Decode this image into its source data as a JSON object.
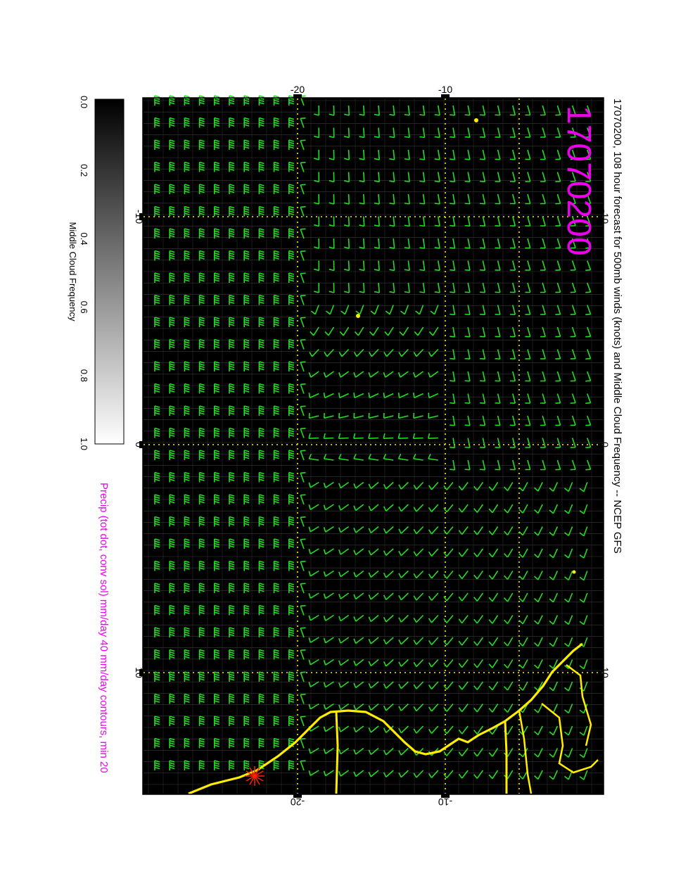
{
  "title": "17070200, 108 hour forecast for 500mb winds (knots) and Middle Cloud Frequency -- NCEP GFS",
  "date_stamp": "17070200",
  "precip_note": "Precip (tot dot, conv sol) mm/day 40 mm/day contours, min 20",
  "colorbar": {
    "label": "Middle Cloud Frequency",
    "ticks": [
      "0.0",
      "0.2",
      "0.4",
      "0.6",
      "0.8",
      "1.0"
    ]
  },
  "axes": {
    "lon_ticks_top": [
      "-10",
      "0",
      "10"
    ],
    "lon_ticks_bottom": [
      "-10",
      "0",
      "10"
    ],
    "lat_ticks_left": [
      "-20",
      "-10"
    ],
    "lat_ticks_right": [
      "-20",
      "-10"
    ]
  },
  "colors": {
    "background": "#000000",
    "wind_barbs": "#22dd22",
    "coastline": "#ffee00",
    "gridlines": "#ffee00",
    "text_accent": "#ee00ee",
    "precip_symbol": "#ff2200"
  },
  "map_data": {
    "projection": "cylindrical, displayed rotated 90 degrees",
    "lon_range": [
      -15,
      15
    ],
    "lat_range": [
      -26,
      -5
    ],
    "wind_field": "500mb wind barbs on regular grid; strong westerlies south of -20, light easterlies/anticyclonic flow north",
    "cloud_field": "near zero everywhere (black)"
  }
}
